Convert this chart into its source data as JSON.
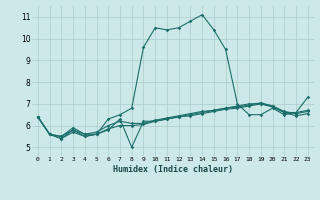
{
  "xlabel": "Humidex (Indice chaleur)",
  "background_color": "#cce8e8",
  "grid_color": "#aacccc",
  "line_color": "#1a6e6a",
  "xlim": [
    -0.5,
    23.5
  ],
  "ylim": [
    4.6,
    11.5
  ],
  "xticks": [
    0,
    1,
    2,
    3,
    4,
    5,
    6,
    7,
    8,
    9,
    10,
    11,
    12,
    13,
    14,
    15,
    16,
    17,
    18,
    19,
    20,
    21,
    22,
    23
  ],
  "yticks": [
    5,
    6,
    7,
    8,
    9,
    10,
    11
  ],
  "series": [
    [
      6.4,
      5.6,
      5.5,
      5.9,
      5.6,
      5.6,
      6.3,
      6.5,
      6.8,
      9.6,
      10.5,
      10.4,
      10.5,
      10.8,
      11.1,
      10.4,
      9.5,
      7.0,
      6.5,
      6.5,
      6.8,
      6.5,
      6.6,
      7.3
    ],
    [
      6.4,
      5.6,
      5.4,
      5.8,
      5.5,
      5.6,
      5.8,
      6.3,
      5.0,
      6.2,
      6.2,
      6.3,
      6.4,
      6.5,
      6.6,
      6.7,
      6.8,
      6.9,
      7.0,
      7.0,
      6.85,
      6.6,
      6.6,
      6.7
    ],
    [
      6.4,
      5.6,
      5.4,
      5.7,
      5.5,
      5.6,
      5.85,
      6.0,
      6.0,
      6.05,
      6.2,
      6.3,
      6.4,
      6.45,
      6.55,
      6.65,
      6.75,
      6.8,
      6.9,
      7.0,
      6.9,
      6.6,
      6.45,
      6.55
    ],
    [
      6.4,
      5.6,
      5.5,
      5.8,
      5.6,
      5.7,
      6.0,
      6.2,
      6.1,
      6.1,
      6.25,
      6.35,
      6.45,
      6.55,
      6.65,
      6.7,
      6.8,
      6.85,
      6.95,
      7.05,
      6.9,
      6.65,
      6.55,
      6.65
    ]
  ]
}
